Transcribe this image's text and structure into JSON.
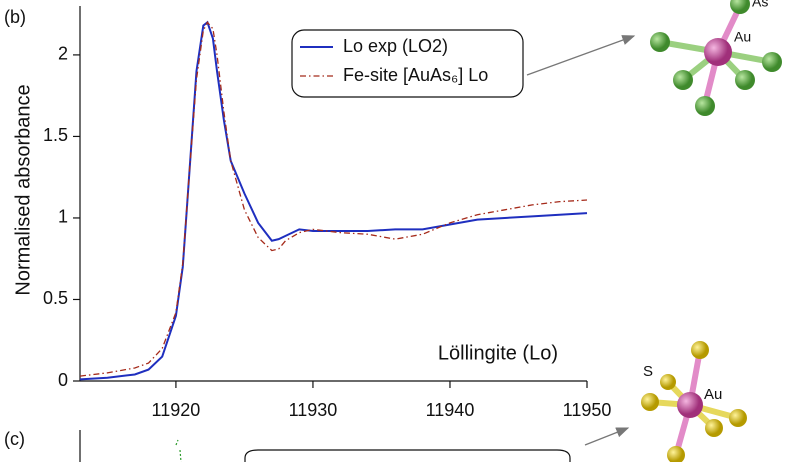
{
  "chart_data": {
    "type": "line",
    "panel_label": "(b)",
    "next_panel_label": "(c)",
    "y_label": "Normalised absorbance",
    "annotation": "Löllingite (Lo)",
    "structure_labels": [
      "As",
      "Au",
      "S",
      "Au"
    ],
    "x": [
      11913,
      11915,
      11917,
      11918,
      11919,
      11920,
      11920.5,
      11921,
      11921.5,
      11922,
      11922.3,
      11922.7,
      11923,
      11923.5,
      11924,
      11925,
      11926,
      11927,
      11927.5,
      11928,
      11929,
      11930,
      11932,
      11934,
      11936,
      11938,
      11940,
      11942,
      11944,
      11946,
      11948,
      11950
    ],
    "series": [
      {
        "name": "Lo exp (LO2)",
        "color": "#1f2fbf",
        "dash": "solid",
        "values": [
          0.01,
          0.02,
          0.04,
          0.07,
          0.15,
          0.4,
          0.7,
          1.3,
          1.9,
          2.18,
          2.2,
          2.1,
          1.9,
          1.6,
          1.35,
          1.15,
          0.97,
          0.86,
          0.87,
          0.89,
          0.93,
          0.92,
          0.92,
          0.92,
          0.93,
          0.93,
          0.96,
          0.99,
          1.0,
          1.01,
          1.02,
          1.03
        ]
      },
      {
        "name": "Fe-site [AuAs₆] Lo",
        "color": "#a52a1a",
        "dash": "dashdot",
        "values": [
          0.03,
          0.05,
          0.08,
          0.11,
          0.2,
          0.42,
          0.72,
          1.3,
          1.85,
          2.15,
          2.2,
          2.16,
          2.0,
          1.65,
          1.35,
          1.05,
          0.88,
          0.8,
          0.81,
          0.86,
          0.91,
          0.93,
          0.91,
          0.9,
          0.87,
          0.9,
          0.97,
          1.02,
          1.05,
          1.08,
          1.1,
          1.11
        ]
      }
    ],
    "xlim": [
      11913,
      11950
    ],
    "ylim": [
      0,
      2.3
    ],
    "xticks": [
      11920,
      11930,
      11940,
      11950
    ],
    "yticks": [
      0,
      0.5,
      1,
      1.5,
      2
    ],
    "grid": false
  }
}
